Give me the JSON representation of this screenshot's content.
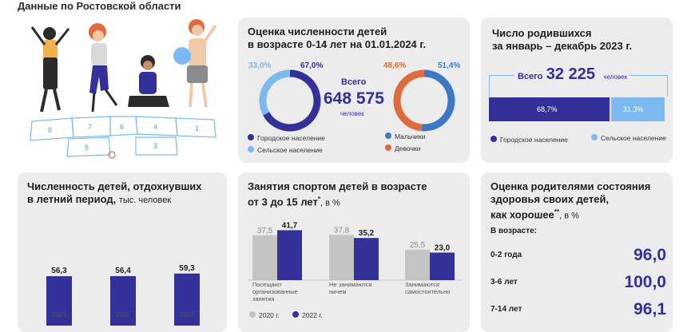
{
  "header": {
    "subtitle": "Данные по Ростовской области"
  },
  "colors": {
    "navy": "#34309a",
    "light_blue": "#7bb9f0",
    "blue": "#3d78c7",
    "orange": "#e16a3c",
    "gray": "#c4c4c4",
    "card": "#ececec"
  },
  "population": {
    "title_line1": "Оценка численности детей",
    "title_line2": "в возрасте 0-14 лет на 01.01.2024 г.",
    "total_label": "Всего",
    "total_value": "648 575",
    "total_unit": "человек",
    "urban_pct": "67,0%",
    "rural_pct": "33,0%",
    "boys_pct": "51,4%",
    "girls_pct": "48,6%",
    "legend_urban": "Городское население",
    "legend_rural": "Сельское население",
    "legend_boys": "Мальчики",
    "legend_girls": "Девочки"
  },
  "births": {
    "title_line1": "Число родившихся",
    "title_line2": "за январь – декабрь 2023 г.",
    "total_label": "Всего",
    "total_value": "32 225",
    "total_unit": "человек",
    "urban_pct": "68,7%",
    "rural_pct": "31,3%",
    "legend_urban": "Городское население",
    "legend_rural": "Сельское население"
  },
  "summer": {
    "title_line1": "Численность детей, отдохнувших",
    "title_line2": "в летний период,",
    "unit": "тыс. человек"
  },
  "sport": {
    "title_line1": "Занятия спортом детей в возрасте",
    "title_line2": "от 3 до 15 лет",
    "title_mark": "*",
    "unit": ", в %",
    "cat1_line1": "Посещают",
    "cat1_line2": "организованные",
    "cat1_line3": "занятия",
    "cat2_line1": "Не занимаются",
    "cat2_line2": "ничем",
    "cat3_line1": "Занимаются",
    "cat3_line2": "самостоятельно",
    "legend_2020": "2020 г.",
    "legend_2022": "2022 г."
  },
  "health": {
    "title_line1": "Оценка родителями состояния",
    "title_line2": "здоровья своих детей,",
    "title_line3": "как хорошее",
    "title_mark": "**",
    "unit": ", в %",
    "age_header": "В возрасте:",
    "rows": [
      {
        "label": "0-2 года",
        "value": "96,0"
      },
      {
        "label": "3-6 лет",
        "value": "100,0"
      },
      {
        "label": "7-14 лет",
        "value": "96,1"
      }
    ]
  },
  "chart_data": [
    {
      "type": "pie",
      "categories": [
        "Городское население",
        "Сельское население"
      ],
      "values": [
        67.0,
        33.0
      ]
    },
    {
      "type": "pie",
      "categories": [
        "Мальчики",
        "Девочки"
      ],
      "values": [
        51.4,
        48.6
      ]
    },
    {
      "type": "bar",
      "title": "Число родившихся за январь – декабрь 2023 г.",
      "categories": [
        "Городское население",
        "Сельское население"
      ],
      "values": [
        68.7,
        31.3
      ],
      "stacked": true
    },
    {
      "type": "bar",
      "title": "Численность детей, отдохнувших в летний период, тыс. человек",
      "categories": [
        "2021",
        "2022",
        "2023"
      ],
      "values": [
        56.3,
        56.4,
        59.3
      ],
      "value_labels": [
        "56,3",
        "56,4",
        "59,3"
      ],
      "ylim": [
        0,
        100
      ]
    },
    {
      "type": "bar",
      "title": "Занятия спортом детей в возрасте от 3 до 15 лет*, в %",
      "categories": [
        "Посещают организованные занятия",
        "Не занимаются ничем",
        "Занимаются самостоятельно"
      ],
      "series": [
        {
          "name": "2020 г.",
          "values": [
            37.5,
            37.8,
            25.5
          ],
          "labels": [
            "37,5",
            "37,8",
            "25,5"
          ]
        },
        {
          "name": "2022 г.",
          "values": [
            41.7,
            35.2,
            23.0
          ],
          "labels": [
            "41,7",
            "35,2",
            "23,0"
          ]
        }
      ],
      "ylim": [
        0,
        80
      ]
    },
    {
      "type": "table",
      "title": "Оценка родителями состояния здоровья своих детей, как хорошее**, в %",
      "categories": [
        "0-2 года",
        "3-6 лет",
        "7-14 лет"
      ],
      "values": [
        96.0,
        100.0,
        96.1
      ]
    }
  ]
}
